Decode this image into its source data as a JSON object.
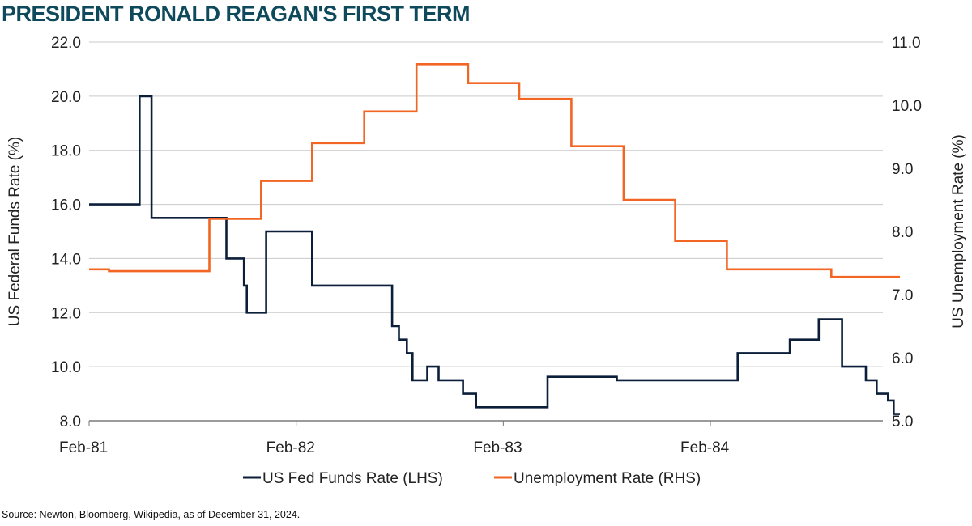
{
  "title": "PRESIDENT RONALD REAGAN'S FIRST TERM",
  "source": "Source: Newton, Bloomberg, Wikipedia, as of December 31, 2024.",
  "chart_data": {
    "type": "line",
    "x_axis": {
      "start": "1981-02",
      "end": "1984-12",
      "ticks": [
        {
          "label": "Feb-81",
          "x": "1981-02"
        },
        {
          "label": "Feb-82",
          "x": "1982-02"
        },
        {
          "label": "Feb-83",
          "x": "1983-02"
        },
        {
          "label": "Feb-84",
          "x": "1984-02"
        }
      ]
    },
    "y_left": {
      "label": "US Federal Funds Rate (%)",
      "lim": [
        8.0,
        22.0
      ],
      "ticks": [
        "8.0",
        "10.0",
        "12.0",
        "14.0",
        "16.0",
        "18.0",
        "20.0",
        "22.0"
      ]
    },
    "y_right": {
      "label": "US Unemployment Rate (%)",
      "lim": [
        5.0,
        11.0
      ],
      "ticks": [
        "5.0",
        "6.0",
        "7.0",
        "8.0",
        "9.0",
        "10.0",
        "11.0"
      ]
    },
    "grid": true,
    "series": [
      {
        "name": "US Fed Funds Rate (LHS)",
        "axis": "left",
        "color": "#0b1f3a",
        "step": true,
        "points": [
          [
            "1981-02-01",
            16.0
          ],
          [
            "1981-05-01",
            20.0
          ],
          [
            "1981-05-22",
            15.5
          ],
          [
            "1981-10-01",
            14.0
          ],
          [
            "1981-11-01",
            13.0
          ],
          [
            "1981-11-06",
            12.0
          ],
          [
            "1981-12-10",
            15.0
          ],
          [
            "1982-03-01",
            13.0
          ],
          [
            "1982-07-20",
            11.5
          ],
          [
            "1982-08-01",
            11.0
          ],
          [
            "1982-08-15",
            10.5
          ],
          [
            "1982-08-25",
            9.5
          ],
          [
            "1982-09-20",
            10.0
          ],
          [
            "1982-10-10",
            9.5
          ],
          [
            "1982-11-22",
            9.0
          ],
          [
            "1982-12-15",
            8.5
          ],
          [
            "1983-04-20",
            9.625
          ],
          [
            "1983-08-20",
            9.5
          ],
          [
            "1984-03-20",
            10.5
          ],
          [
            "1984-06-20",
            11.0
          ],
          [
            "1984-08-10",
            11.75
          ],
          [
            "1984-09-20",
            10.0
          ],
          [
            "1984-11-01",
            9.5
          ],
          [
            "1984-11-20",
            9.0
          ],
          [
            "1984-12-10",
            8.75
          ],
          [
            "1984-12-20",
            8.25
          ],
          [
            "1984-12-31",
            8.25
          ]
        ]
      },
      {
        "name": "Unemployment Rate (RHS)",
        "axis": "right",
        "color": "#f26522",
        "step": true,
        "points": [
          [
            "1981-02-01",
            7.4
          ],
          [
            "1981-03-08",
            7.37
          ],
          [
            "1981-09-01",
            8.2
          ],
          [
            "1981-12-01",
            8.8
          ],
          [
            "1982-03-01",
            9.4
          ],
          [
            "1982-06-01",
            9.9
          ],
          [
            "1982-09-01",
            10.65
          ],
          [
            "1982-12-01",
            10.35
          ],
          [
            "1983-03-01",
            10.1
          ],
          [
            "1983-06-01",
            9.35
          ],
          [
            "1983-09-01",
            8.5
          ],
          [
            "1983-12-01",
            7.85
          ],
          [
            "1984-03-01",
            7.4
          ],
          [
            "1984-09-01",
            7.28
          ],
          [
            "1984-12-31",
            7.28
          ]
        ]
      }
    ]
  }
}
